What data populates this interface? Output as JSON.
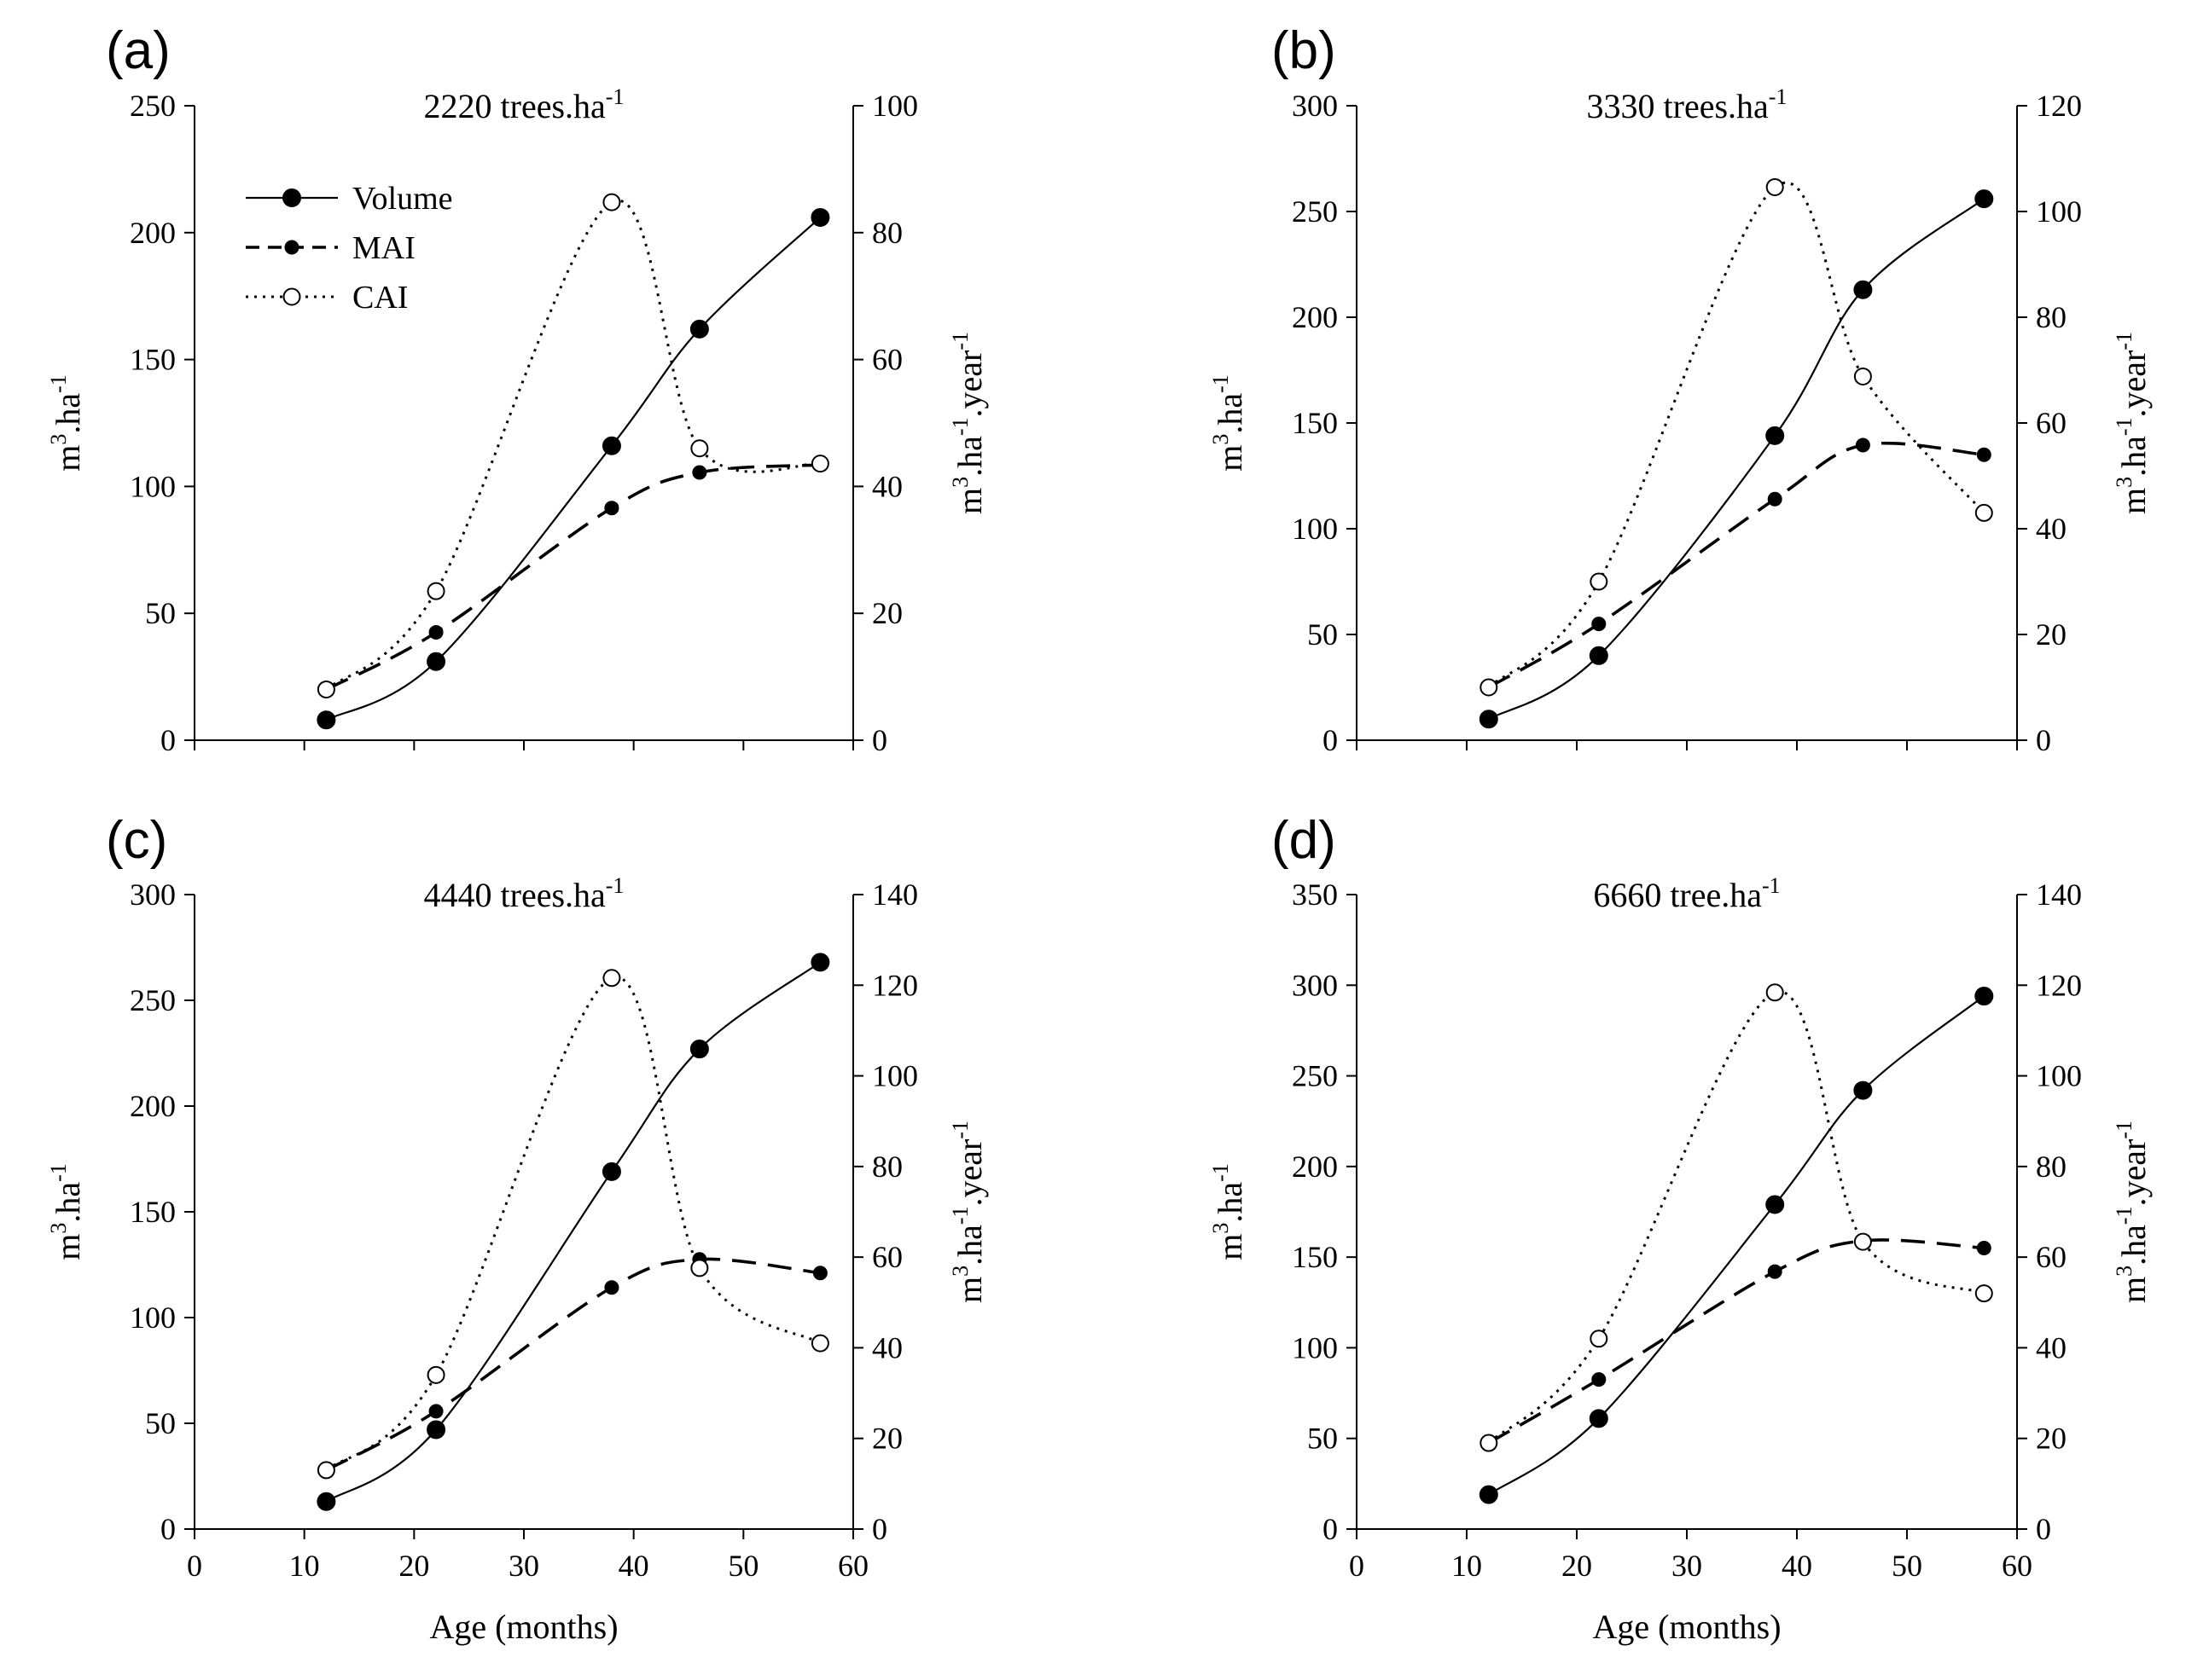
{
  "chart_data": [
    {
      "type": "line",
      "panel_label": "(a)",
      "title": {
        "text": "2220 trees.ha",
        "sup": "-1"
      },
      "x": [
        12,
        22,
        38,
        46,
        57
      ],
      "xlim": [
        0,
        60
      ],
      "xticks": [
        "0",
        "10",
        "20",
        "30",
        "40",
        "50",
        "60"
      ],
      "xlabel": "",
      "ylim_left": [
        0,
        250
      ],
      "yticks_left": [
        "0",
        "50",
        "100",
        "150",
        "200",
        "250"
      ],
      "ylabel_left": {
        "base": "m",
        "sup1": "3",
        "mid": ".ha",
        "sup2": "-1",
        "end": ""
      },
      "ylim_right": [
        0,
        100
      ],
      "yticks_right": [
        "0",
        "20",
        "40",
        "60",
        "80",
        "100"
      ],
      "ylabel_right": {
        "base": "m",
        "sup1": "3",
        "mid": ".ha",
        "sup2": "-1",
        "end": ".year",
        "sup3": "-1"
      },
      "series": [
        {
          "name": "Volume",
          "axis": "left",
          "values": [
            8,
            31,
            116,
            162,
            206
          ]
        },
        {
          "name": "MAI",
          "axis": "right",
          "values": [
            8.0,
            17.0,
            36.6,
            42.2,
            43.4
          ]
        },
        {
          "name": "CAI",
          "axis": "right",
          "values": [
            8.0,
            23.5,
            84.8,
            46.0,
            43.6
          ]
        }
      ],
      "legend": {
        "position": "top-left",
        "entries": [
          "Volume",
          "MAI",
          "CAI"
        ]
      }
    },
    {
      "type": "line",
      "panel_label": "(b)",
      "title": {
        "text": "3330 trees.ha",
        "sup": "-1"
      },
      "x": [
        12,
        22,
        38,
        46,
        57
      ],
      "xlim": [
        0,
        60
      ],
      "xticks": [
        "0",
        "10",
        "20",
        "30",
        "40",
        "50",
        "60"
      ],
      "xlabel": "",
      "ylim_left": [
        0,
        300
      ],
      "yticks_left": [
        "0",
        "50",
        "100",
        "150",
        "200",
        "250",
        "300"
      ],
      "ylabel_left": {
        "base": "m",
        "sup1": "3",
        "mid": ".ha",
        "sup2": "-1",
        "end": ""
      },
      "ylim_right": [
        0,
        120
      ],
      "yticks_right": [
        "0",
        "20",
        "40",
        "60",
        "80",
        "100",
        "120"
      ],
      "ylabel_right": {
        "base": "m",
        "sup1": "3",
        "mid": ".ha",
        "sup2": "-1",
        "end": ".year",
        "sup3": "-1"
      },
      "series": [
        {
          "name": "Volume",
          "axis": "left",
          "values": [
            10,
            40,
            144,
            213,
            256
          ]
        },
        {
          "name": "MAI",
          "axis": "right",
          "values": [
            10.0,
            22.0,
            45.6,
            55.8,
            54.0
          ]
        },
        {
          "name": "CAI",
          "axis": "right",
          "values": [
            10.0,
            30.0,
            104.6,
            68.8,
            43.0
          ]
        }
      ]
    },
    {
      "type": "line",
      "panel_label": "(c)",
      "title": {
        "text": "4440 trees.ha",
        "sup": "-1"
      },
      "x": [
        12,
        22,
        38,
        46,
        57
      ],
      "xlim": [
        0,
        60
      ],
      "xticks": [
        "0",
        "10",
        "20",
        "30",
        "40",
        "50",
        "60"
      ],
      "xlabel": "Age (months)",
      "ylim_left": [
        0,
        300
      ],
      "yticks_left": [
        "0",
        "50",
        "100",
        "150",
        "200",
        "250",
        "300"
      ],
      "ylabel_left": {
        "base": "m",
        "sup1": "3",
        "mid": ".ha",
        "sup2": "-1",
        "end": ""
      },
      "ylim_right": [
        0,
        140
      ],
      "yticks_right": [
        "0",
        "20",
        "40",
        "60",
        "80",
        "100",
        "120",
        "140"
      ],
      "ylabel_right": {
        "base": "m",
        "sup1": "3",
        "mid": ".ha",
        "sup2": "-1",
        "end": ".year",
        "sup3": "-1"
      },
      "series": [
        {
          "name": "Volume",
          "axis": "left",
          "values": [
            13,
            47,
            169,
            227,
            268
          ]
        },
        {
          "name": "MAI",
          "axis": "right",
          "values": [
            13.0,
            26.0,
            53.3,
            59.5,
            56.5
          ]
        },
        {
          "name": "CAI",
          "axis": "right",
          "values": [
            13.0,
            34.0,
            121.6,
            57.6,
            41.0
          ]
        }
      ]
    },
    {
      "type": "line",
      "panel_label": "(d)",
      "title": {
        "text": "6660 tree.ha",
        "sup": "-1"
      },
      "x": [
        12,
        22,
        38,
        46,
        57
      ],
      "xlim": [
        0,
        60
      ],
      "xticks": [
        "0",
        "10",
        "20",
        "30",
        "40",
        "50",
        "60"
      ],
      "xlabel": "Age (months)",
      "ylim_left": [
        0,
        350
      ],
      "yticks_left": [
        "0",
        "50",
        "100",
        "150",
        "200",
        "250",
        "300",
        "350"
      ],
      "ylabel_left": {
        "base": "m",
        "sup1": "3",
        "mid": ".ha",
        "sup2": "-1",
        "end": ""
      },
      "ylim_right": [
        0,
        140
      ],
      "yticks_right": [
        "0",
        "20",
        "40",
        "60",
        "80",
        "100",
        "120",
        "140"
      ],
      "ylabel_right": {
        "base": "m",
        "sup1": "3",
        "mid": ".ha",
        "sup2": "-1",
        "end": ".year",
        "sup3": "-1"
      },
      "series": [
        {
          "name": "Volume",
          "axis": "left",
          "values": [
            19,
            61,
            179,
            242,
            294
          ]
        },
        {
          "name": "MAI",
          "axis": "right",
          "values": [
            19.0,
            33.0,
            56.8,
            63.6,
            62.0
          ]
        },
        {
          "name": "CAI",
          "axis": "right",
          "values": [
            19.0,
            42.0,
            118.4,
            63.4,
            52.0
          ]
        }
      ]
    }
  ]
}
